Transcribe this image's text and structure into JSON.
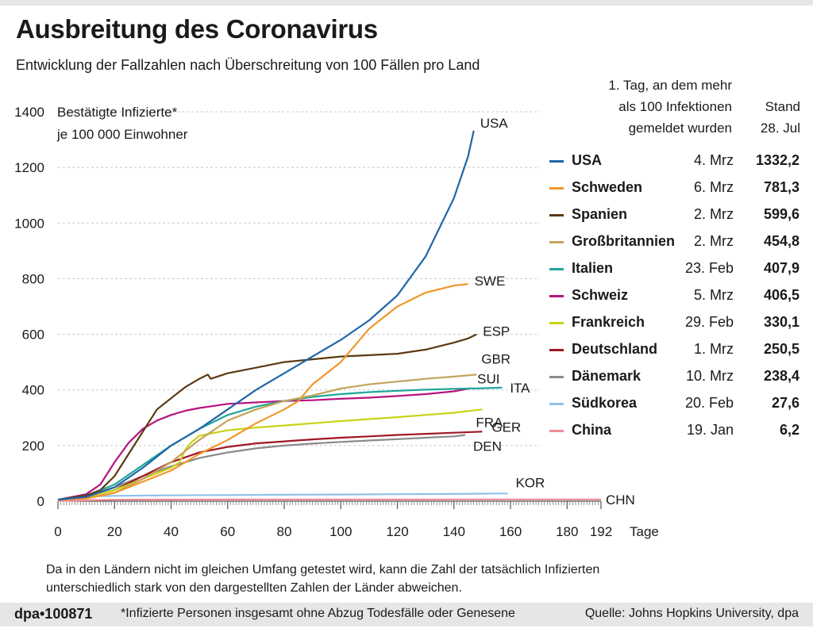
{
  "header": {
    "title": "Ausbreitung des Coronavirus",
    "subtitle": "Entwicklung der Fallzahlen nach Überschreitung von 100 Fällen pro Land"
  },
  "legend_header": {
    "first_day_line1": "1. Tag, an dem mehr",
    "first_day_line2": "als 100 Infektionen",
    "first_day_line3": "gemeldet wurden",
    "stand_line1": "Stand",
    "stand_line2": "28. Jul"
  },
  "legend": [
    {
      "name": "USA",
      "date": "4. Mrz",
      "value": "1332,2",
      "color": "#1f65a8"
    },
    {
      "name": "Schweden",
      "date": "6. Mrz",
      "value": "781,3",
      "color": "#f0972a"
    },
    {
      "name": "Spanien",
      "date": "2. Mrz",
      "value": "599,6",
      "color": "#5b3a12"
    },
    {
      "name": "Großbritannien",
      "date": "2. Mrz",
      "value": "454,8",
      "color": "#c4a45a"
    },
    {
      "name": "Italien",
      "date": "23. Feb",
      "value": "407,9",
      "color": "#1fa79a"
    },
    {
      "name": "Schweiz",
      "date": "5. Mrz",
      "value": "406,5",
      "color": "#b5147f"
    },
    {
      "name": "Frankreich",
      "date": "29. Feb",
      "value": "330,1",
      "color": "#c8d317"
    },
    {
      "name": "Deutschland",
      "date": "1. Mrz",
      "value": "250,5",
      "color": "#a01624"
    },
    {
      "name": "Dänemark",
      "date": "10. Mrz",
      "value": "238,4",
      "color": "#8a8a8a"
    },
    {
      "name": "Südkorea",
      "date": "20. Feb",
      "value": "27,6",
      "color": "#8fc2e8"
    },
    {
      "name": "China",
      "date": "19. Jan",
      "value": "6,2",
      "color": "#f28b96"
    }
  ],
  "note": {
    "line1": "Da in den Ländern nicht im gleichen Umfang getestet wird, kann die Zahl der tatsächlich Infizierten",
    "line2": "unterschiedlich stark von den dargestellten Zahlen der Länder abweichen."
  },
  "footer": {
    "code": "dpa•100871",
    "footnote": "*Infizierte Personen insgesamt ohne Abzug Todesfälle oder Genesene",
    "source": "Quelle: Johns Hopkins University, dpa"
  },
  "chart_data": {
    "type": "line",
    "ylabel_line1": "Bestätigte Infizierte*",
    "ylabel_line2": "je 100 000 Einwohner",
    "xlabel": "Tage",
    "xlim": [
      0,
      192
    ],
    "ylim": [
      0,
      1400
    ],
    "x_ticks": [
      0,
      20,
      40,
      60,
      80,
      100,
      120,
      140,
      160,
      180,
      192
    ],
    "y_ticks": [
      0,
      200,
      400,
      600,
      800,
      1000,
      1200,
      1400
    ],
    "grid": "horizontal dashed",
    "series": [
      {
        "name": "USA",
        "label": "USA",
        "color": "#1f65a8",
        "points": [
          [
            0,
            5
          ],
          [
            10,
            15
          ],
          [
            20,
            50
          ],
          [
            30,
            120
          ],
          [
            40,
            200
          ],
          [
            50,
            260
          ],
          [
            60,
            330
          ],
          [
            70,
            400
          ],
          [
            80,
            460
          ],
          [
            90,
            520
          ],
          [
            100,
            580
          ],
          [
            110,
            650
          ],
          [
            120,
            740
          ],
          [
            130,
            880
          ],
          [
            140,
            1090
          ],
          [
            145,
            1240
          ],
          [
            147,
            1332
          ]
        ]
      },
      {
        "name": "SWE",
        "label": "SWE",
        "color": "#f0972a",
        "points": [
          [
            0,
            5
          ],
          [
            10,
            10
          ],
          [
            20,
            30
          ],
          [
            30,
            70
          ],
          [
            40,
            110
          ],
          [
            50,
            170
          ],
          [
            60,
            220
          ],
          [
            70,
            280
          ],
          [
            80,
            330
          ],
          [
            85,
            360
          ],
          [
            90,
            420
          ],
          [
            100,
            500
          ],
          [
            105,
            560
          ],
          [
            110,
            620
          ],
          [
            115,
            660
          ],
          [
            120,
            700
          ],
          [
            130,
            750
          ],
          [
            140,
            775
          ],
          [
            145,
            781
          ]
        ]
      },
      {
        "name": "ESP",
        "label": "ESP",
        "color": "#5b3a12",
        "points": [
          [
            0,
            5
          ],
          [
            10,
            20
          ],
          [
            15,
            40
          ],
          [
            20,
            90
          ],
          [
            25,
            170
          ],
          [
            30,
            250
          ],
          [
            35,
            330
          ],
          [
            40,
            370
          ],
          [
            45,
            410
          ],
          [
            50,
            440
          ],
          [
            53,
            455
          ],
          [
            54,
            440
          ],
          [
            60,
            460
          ],
          [
            70,
            480
          ],
          [
            80,
            500
          ],
          [
            90,
            510
          ],
          [
            100,
            520
          ],
          [
            110,
            525
          ],
          [
            120,
            530
          ],
          [
            130,
            545
          ],
          [
            140,
            570
          ],
          [
            145,
            585
          ],
          [
            148,
            600
          ]
        ]
      },
      {
        "name": "GBR",
        "label": "GBR",
        "color": "#c4a45a",
        "points": [
          [
            0,
            5
          ],
          [
            10,
            10
          ],
          [
            20,
            30
          ],
          [
            30,
            80
          ],
          [
            40,
            140
          ],
          [
            50,
            220
          ],
          [
            60,
            290
          ],
          [
            70,
            330
          ],
          [
            80,
            360
          ],
          [
            90,
            380
          ],
          [
            100,
            405
          ],
          [
            110,
            420
          ],
          [
            120,
            430
          ],
          [
            130,
            440
          ],
          [
            140,
            448
          ],
          [
            148,
            455
          ]
        ]
      },
      {
        "name": "ITA",
        "label": "ITA",
        "color": "#1fa79a",
        "points": [
          [
            0,
            5
          ],
          [
            10,
            20
          ],
          [
            20,
            60
          ],
          [
            30,
            130
          ],
          [
            40,
            200
          ],
          [
            50,
            260
          ],
          [
            60,
            310
          ],
          [
            70,
            340
          ],
          [
            80,
            360
          ],
          [
            90,
            375
          ],
          [
            100,
            385
          ],
          [
            110,
            392
          ],
          [
            120,
            397
          ],
          [
            130,
            401
          ],
          [
            140,
            404
          ],
          [
            150,
            406
          ],
          [
            157,
            408
          ]
        ]
      },
      {
        "name": "SUI",
        "label": "SUI",
        "color": "#b5147f",
        "points": [
          [
            0,
            5
          ],
          [
            10,
            25
          ],
          [
            15,
            60
          ],
          [
            20,
            140
          ],
          [
            25,
            210
          ],
          [
            30,
            260
          ],
          [
            35,
            290
          ],
          [
            40,
            310
          ],
          [
            45,
            325
          ],
          [
            50,
            335
          ],
          [
            60,
            350
          ],
          [
            70,
            355
          ],
          [
            80,
            360
          ],
          [
            90,
            363
          ],
          [
            100,
            368
          ],
          [
            110,
            372
          ],
          [
            120,
            378
          ],
          [
            130,
            385
          ],
          [
            140,
            395
          ],
          [
            146,
            406
          ]
        ]
      },
      {
        "name": "FRA",
        "label": "FRA",
        "color": "#c8d317",
        "points": [
          [
            0,
            5
          ],
          [
            10,
            15
          ],
          [
            20,
            40
          ],
          [
            30,
            80
          ],
          [
            40,
            120
          ],
          [
            43,
            140
          ],
          [
            45,
            185
          ],
          [
            47,
            210
          ],
          [
            50,
            235
          ],
          [
            60,
            255
          ],
          [
            70,
            265
          ],
          [
            80,
            272
          ],
          [
            90,
            280
          ],
          [
            100,
            288
          ],
          [
            110,
            295
          ],
          [
            120,
            302
          ],
          [
            130,
            310
          ],
          [
            140,
            318
          ],
          [
            150,
            330
          ]
        ]
      },
      {
        "name": "GER",
        "label": "GER",
        "color": "#a01624",
        "points": [
          [
            0,
            5
          ],
          [
            10,
            15
          ],
          [
            20,
            40
          ],
          [
            30,
            90
          ],
          [
            40,
            140
          ],
          [
            50,
            175
          ],
          [
            60,
            195
          ],
          [
            70,
            208
          ],
          [
            80,
            215
          ],
          [
            90,
            222
          ],
          [
            100,
            228
          ],
          [
            110,
            233
          ],
          [
            120,
            238
          ],
          [
            130,
            242
          ],
          [
            140,
            246
          ],
          [
            150,
            250
          ]
        ]
      },
      {
        "name": "DEN",
        "label": "DEN",
        "color": "#8a8a8a",
        "points": [
          [
            0,
            5
          ],
          [
            10,
            20
          ],
          [
            20,
            50
          ],
          [
            30,
            90
          ],
          [
            40,
            125
          ],
          [
            50,
            155
          ],
          [
            60,
            175
          ],
          [
            70,
            190
          ],
          [
            80,
            200
          ],
          [
            90,
            207
          ],
          [
            100,
            213
          ],
          [
            110,
            218
          ],
          [
            120,
            223
          ],
          [
            130,
            228
          ],
          [
            140,
            233
          ],
          [
            144,
            238
          ]
        ]
      },
      {
        "name": "KOR",
        "label": "KOR",
        "color": "#8fc2e8",
        "points": [
          [
            0,
            5
          ],
          [
            5,
            10
          ],
          [
            10,
            15
          ],
          [
            15,
            18
          ],
          [
            20,
            19
          ],
          [
            40,
            21
          ],
          [
            60,
            22
          ],
          [
            80,
            23
          ],
          [
            100,
            24
          ],
          [
            120,
            25
          ],
          [
            140,
            26
          ],
          [
            159,
            27.6
          ]
        ]
      },
      {
        "name": "CHN",
        "label": "CHN",
        "color": "#f28b96",
        "points": [
          [
            0,
            1
          ],
          [
            10,
            3
          ],
          [
            20,
            5
          ],
          [
            30,
            5.8
          ],
          [
            60,
            6
          ],
          [
            100,
            6.1
          ],
          [
            140,
            6.2
          ],
          [
            192,
            6.2
          ]
        ]
      }
    ]
  }
}
